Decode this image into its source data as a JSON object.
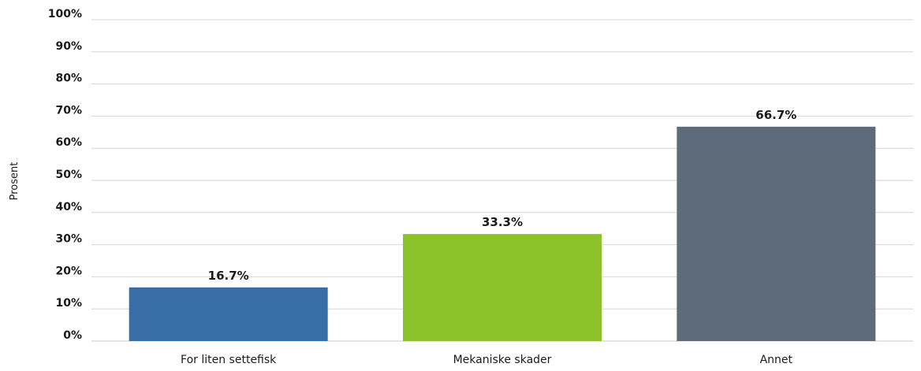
{
  "chart_data": {
    "type": "bar",
    "categories": [
      "For liten settefisk",
      "Mekaniske skader",
      "Annet"
    ],
    "values": [
      16.7,
      33.3,
      66.7
    ],
    "data_labels": [
      "16.7%",
      "33.3%",
      "66.7%"
    ],
    "bar_colors": [
      "#386da6",
      "#8cc22a",
      "#5d6b7a"
    ],
    "ylabel": "Prosent",
    "ylim": [
      0,
      100
    ],
    "yticks": [
      0,
      10,
      20,
      30,
      40,
      50,
      60,
      70,
      80,
      90,
      100
    ],
    "ytick_labels": [
      "0%",
      "10%",
      "20%",
      "30%",
      "40%",
      "50%",
      "60%",
      "70%",
      "80%",
      "90%",
      "100%"
    ],
    "grid": true,
    "legend": "none"
  }
}
